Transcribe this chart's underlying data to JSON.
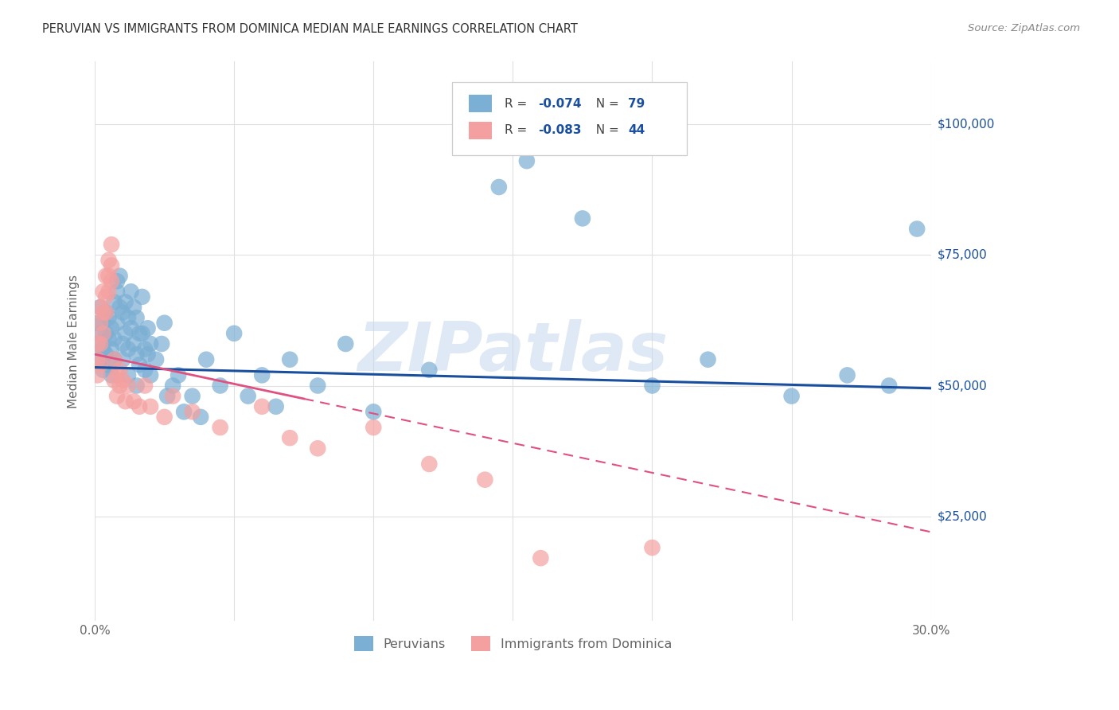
{
  "title": "PERUVIAN VS IMMIGRANTS FROM DOMINICA MEDIAN MALE EARNINGS CORRELATION CHART",
  "source": "Source: ZipAtlas.com",
  "ylabel": "Median Male Earnings",
  "ytick_labels": [
    "$25,000",
    "$50,000",
    "$75,000",
    "$100,000"
  ],
  "ytick_values": [
    25000,
    50000,
    75000,
    100000
  ],
  "ylim": [
    5000,
    112000
  ],
  "xlim": [
    0.0,
    0.3
  ],
  "r_blue": "-0.074",
  "n_blue": "79",
  "r_pink": "-0.083",
  "n_pink": "44",
  "blue_scatter_color": "#7bafd4",
  "pink_scatter_color": "#f4a0a0",
  "blue_line_color": "#1a4fa0",
  "pink_line_color": "#e05080",
  "label_blue": "Peruvians",
  "label_pink": "Immigrants from Dominica",
  "watermark": "ZIPatlas",
  "watermark_color": "#c5d8f0",
  "grid_color": "#e0e0e0",
  "title_color": "#333333",
  "source_color": "#888888",
  "axis_label_color": "#666666",
  "blue_x": [
    0.001,
    0.001,
    0.002,
    0.002,
    0.002,
    0.003,
    0.003,
    0.003,
    0.004,
    0.004,
    0.004,
    0.005,
    0.005,
    0.005,
    0.006,
    0.006,
    0.006,
    0.007,
    0.007,
    0.007,
    0.008,
    0.008,
    0.008,
    0.009,
    0.009,
    0.01,
    0.01,
    0.01,
    0.011,
    0.011,
    0.012,
    0.012,
    0.012,
    0.013,
    0.013,
    0.014,
    0.014,
    0.015,
    0.015,
    0.015,
    0.016,
    0.016,
    0.017,
    0.017,
    0.018,
    0.018,
    0.019,
    0.019,
    0.02,
    0.02,
    0.022,
    0.024,
    0.025,
    0.026,
    0.028,
    0.03,
    0.032,
    0.035,
    0.038,
    0.04,
    0.045,
    0.05,
    0.055,
    0.06,
    0.065,
    0.07,
    0.08,
    0.09,
    0.1,
    0.12,
    0.145,
    0.155,
    0.175,
    0.2,
    0.22,
    0.25,
    0.27,
    0.285,
    0.295
  ],
  "blue_y": [
    58000,
    62000,
    55000,
    60000,
    65000,
    53000,
    57000,
    62000,
    56000,
    60000,
    64000,
    54000,
    59000,
    63000,
    52000,
    57000,
    61000,
    55000,
    59000,
    66000,
    68000,
    62000,
    70000,
    65000,
    71000,
    64000,
    58000,
    55000,
    66000,
    60000,
    63000,
    57000,
    52000,
    68000,
    61000,
    65000,
    58000,
    63000,
    56000,
    50000,
    60000,
    54000,
    67000,
    60000,
    57000,
    53000,
    61000,
    56000,
    58000,
    52000,
    55000,
    58000,
    62000,
    48000,
    50000,
    52000,
    45000,
    48000,
    44000,
    55000,
    50000,
    60000,
    48000,
    52000,
    46000,
    55000,
    50000,
    58000,
    45000,
    53000,
    88000,
    93000,
    82000,
    50000,
    55000,
    48000,
    52000,
    50000,
    80000
  ],
  "pink_x": [
    0.001,
    0.001,
    0.001,
    0.002,
    0.002,
    0.002,
    0.002,
    0.003,
    0.003,
    0.003,
    0.004,
    0.004,
    0.004,
    0.005,
    0.005,
    0.005,
    0.006,
    0.006,
    0.006,
    0.007,
    0.007,
    0.008,
    0.008,
    0.009,
    0.009,
    0.01,
    0.011,
    0.012,
    0.014,
    0.016,
    0.018,
    0.02,
    0.025,
    0.028,
    0.035,
    0.045,
    0.06,
    0.07,
    0.08,
    0.1,
    0.12,
    0.14,
    0.16,
    0.2
  ],
  "pink_y": [
    58000,
    55000,
    52000,
    65000,
    62000,
    58000,
    54000,
    68000,
    64000,
    60000,
    71000,
    67000,
    64000,
    74000,
    71000,
    68000,
    77000,
    73000,
    70000,
    55000,
    51000,
    52000,
    48000,
    53000,
    50000,
    51000,
    47000,
    50000,
    47000,
    46000,
    50000,
    46000,
    44000,
    48000,
    45000,
    42000,
    46000,
    40000,
    38000,
    42000,
    35000,
    32000,
    17000,
    19000
  ],
  "blue_trend_x": [
    0.0,
    0.3
  ],
  "blue_trend_y": [
    53500,
    49500
  ],
  "pink_trend_x": [
    0.0,
    0.3
  ],
  "pink_trend_y": [
    56000,
    22000
  ]
}
